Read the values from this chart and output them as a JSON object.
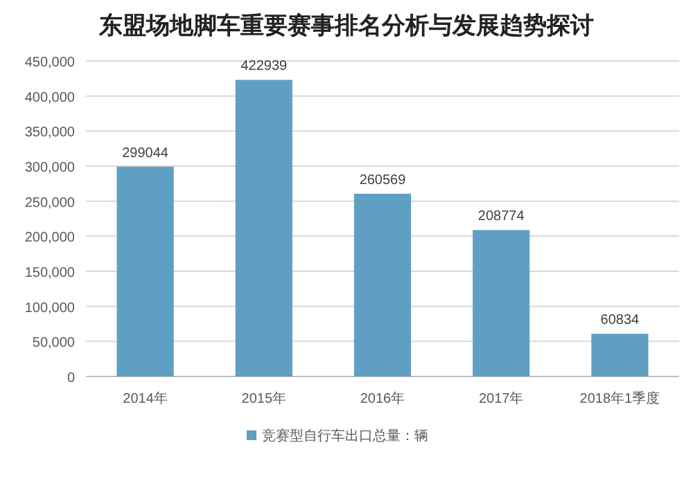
{
  "chart_data": {
    "type": "bar",
    "title": "东盟场地脚车重要赛事排名分析与发展趋势探讨",
    "categories": [
      "2014年",
      "2015年",
      "2016年",
      "2017年",
      "2018年1季度"
    ],
    "series": [
      {
        "name": "竞赛型自行车出口总量：辆",
        "color": "#5f9fc4",
        "values": [
          299044,
          422939,
          260569,
          208774,
          60834
        ]
      }
    ],
    "ylim": [
      0,
      450000
    ],
    "yticks": [
      {
        "value": 0,
        "label": "0"
      },
      {
        "value": 50000,
        "label": "50,000"
      },
      {
        "value": 100000,
        "label": "100,000"
      },
      {
        "value": 150000,
        "label": "150,000"
      },
      {
        "value": 200000,
        "label": "200,000"
      },
      {
        "value": 250000,
        "label": "250,000"
      },
      {
        "value": 300000,
        "label": "300,000"
      },
      {
        "value": 350000,
        "label": "350,000"
      },
      {
        "value": 400000,
        "label": "400,000"
      },
      {
        "value": 450000,
        "label": "450,000"
      }
    ],
    "grid": "y",
    "legend": "bottom",
    "data_labels": true
  }
}
